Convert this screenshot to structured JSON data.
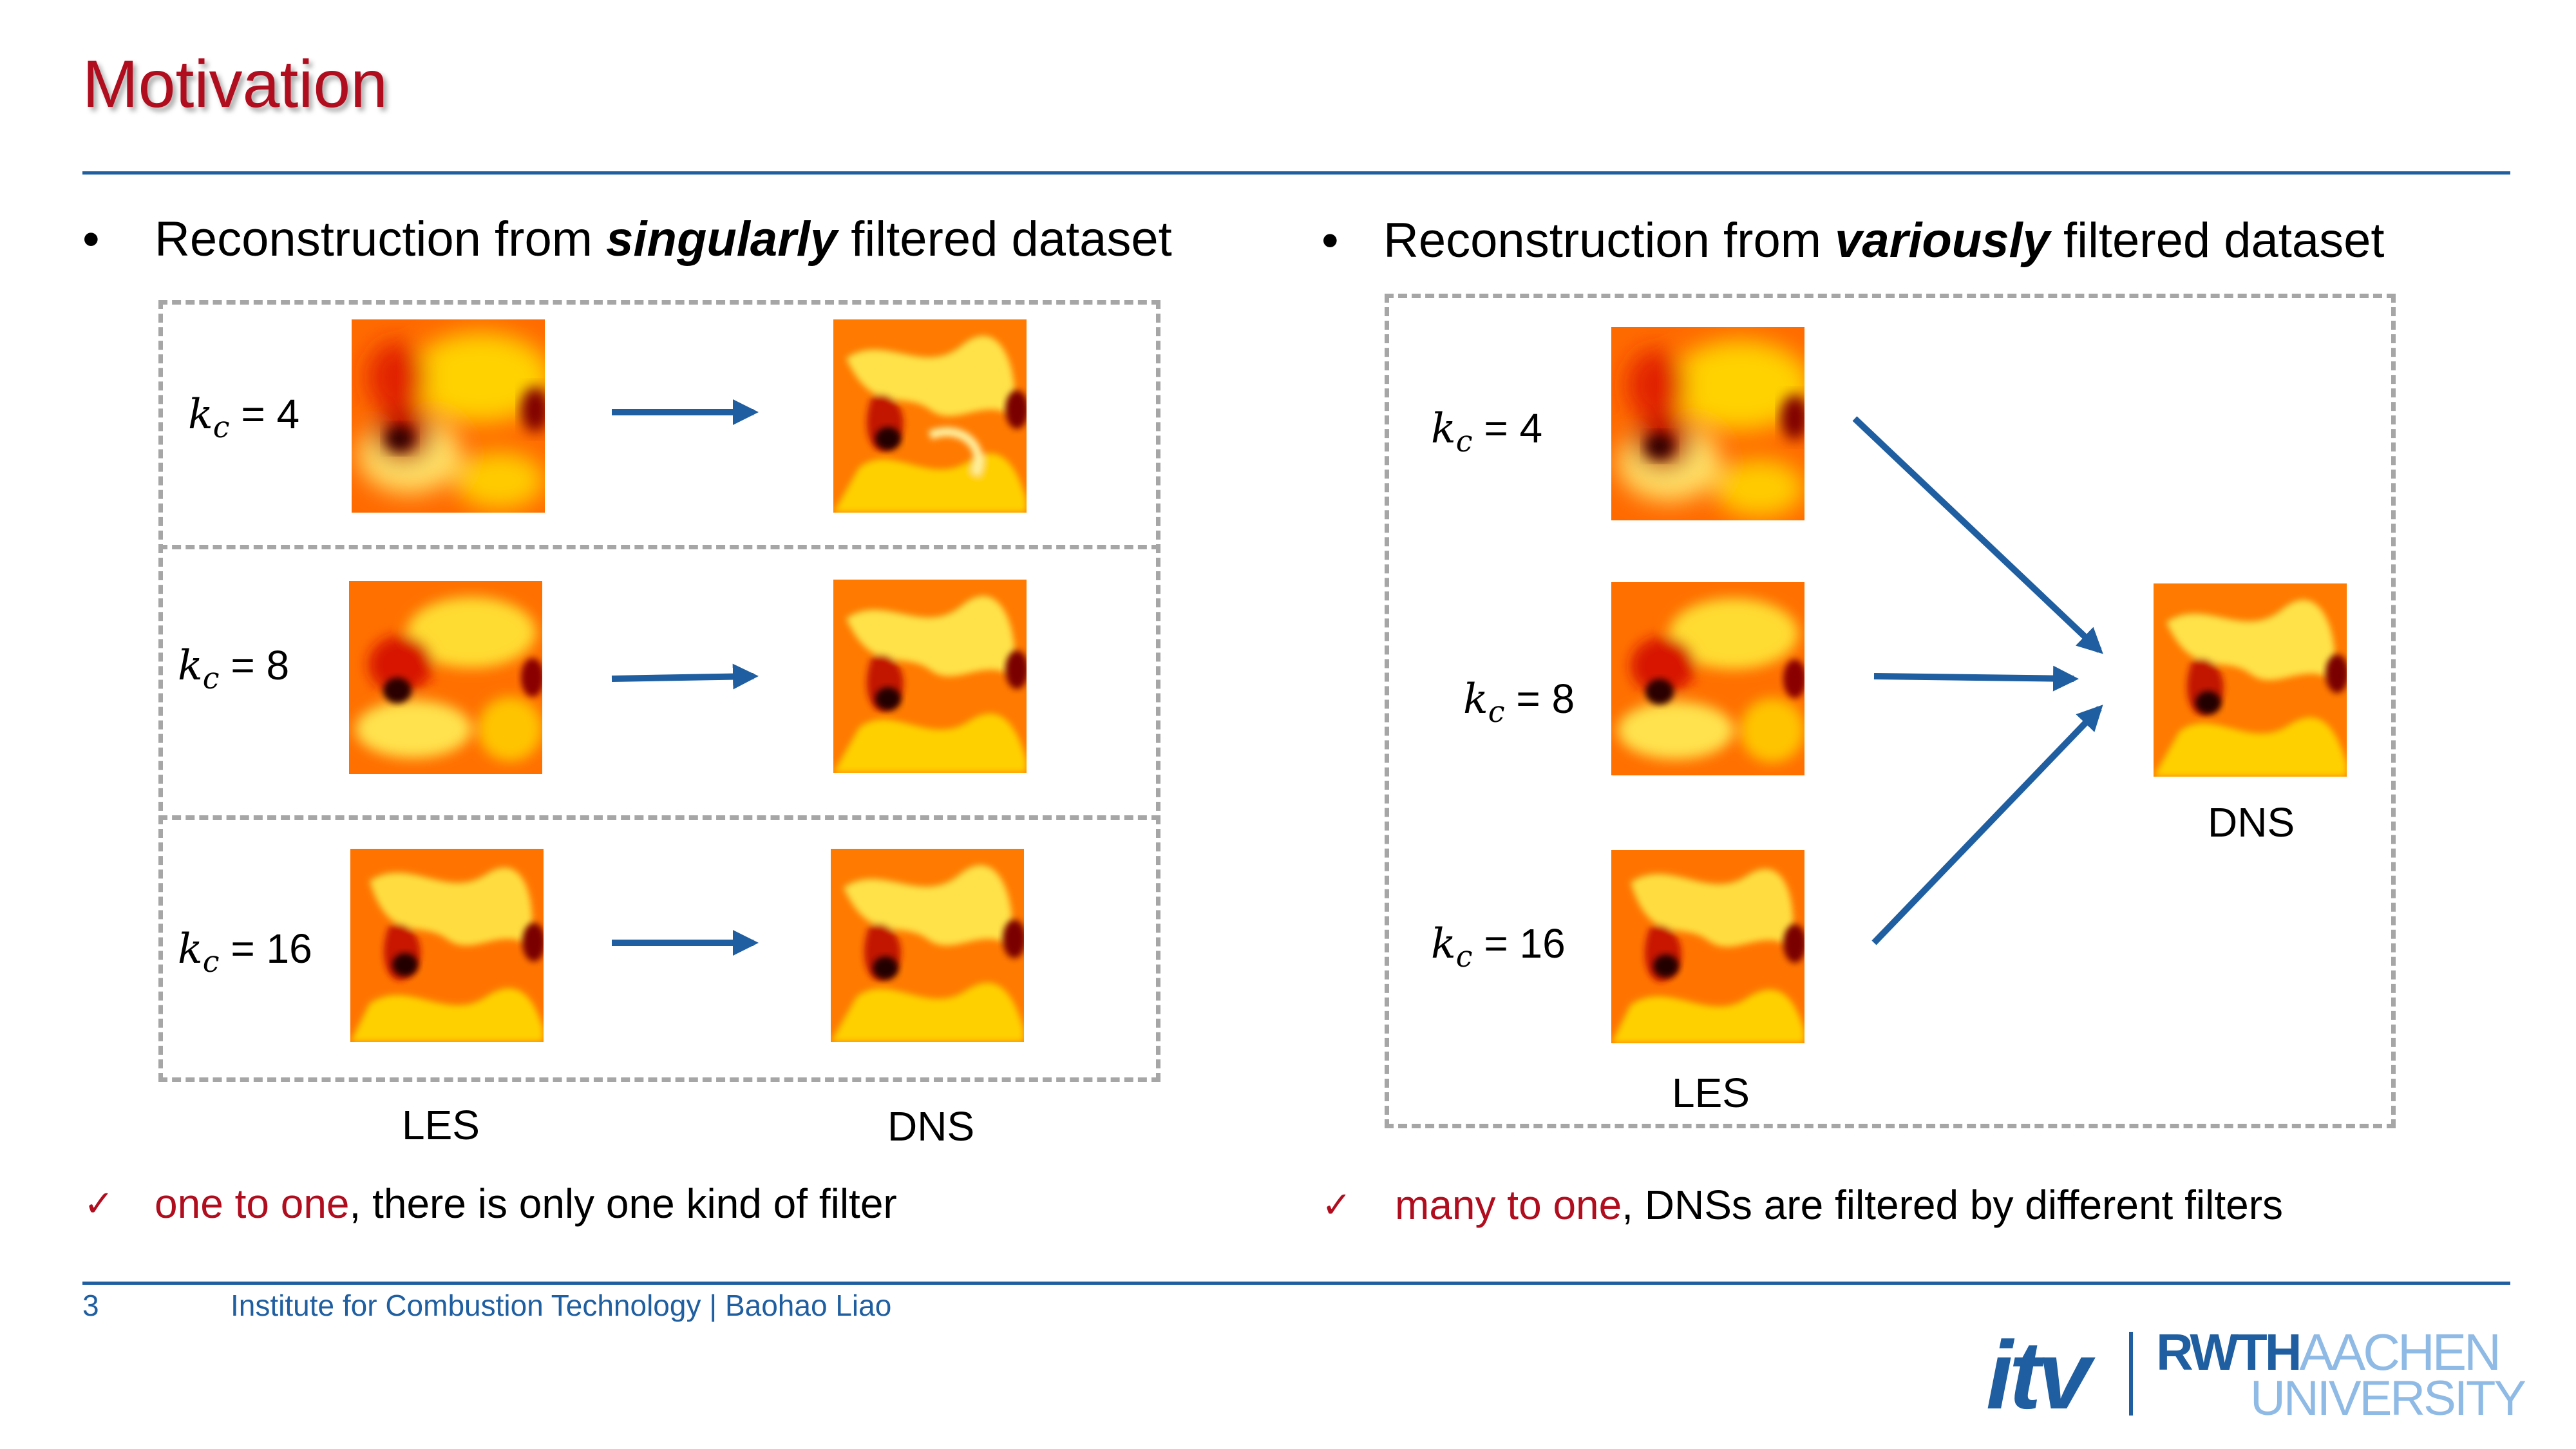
{
  "title": "Motivation",
  "left": {
    "bullet": "•",
    "heading_prefix": "Reconstruction from ",
    "heading_emph": "singularly",
    "heading_suffix": " filtered dataset",
    "rows": [
      {
        "kc_value": "= 4"
      },
      {
        "kc_value": "= 8"
      },
      {
        "kc_value": "= 16"
      }
    ],
    "les_label": "LES",
    "dns_label": "DNS",
    "note_highlight": "one to one",
    "note_rest": ", there is only one kind of filter"
  },
  "right": {
    "bullet": "•",
    "heading_prefix": "Reconstruction from ",
    "heading_emph": "variously",
    "heading_suffix": " filtered dataset",
    "rows": [
      {
        "kc_value": "= 4"
      },
      {
        "kc_value": "= 8"
      },
      {
        "kc_value": "= 16"
      }
    ],
    "les_label": "LES",
    "dns_label": "DNS",
    "note_highlight": "many to one",
    "note_rest": ", DNSs are filtered by different filters"
  },
  "kc_symbol": "k",
  "kc_sub": "c",
  "check_mark": "✓",
  "footer": {
    "page_number": "3",
    "text": "Institute for Combustion Technology | Baohao Liao"
  },
  "logo": {
    "itv": "itv",
    "rwth": "RWTH",
    "aachen": "AACHEN",
    "university": "UNIVERSITY"
  },
  "colors": {
    "title_red": "#b00d1e",
    "accent_blue": "#1f5ea0",
    "dash_gray": "#a6a6a6"
  }
}
